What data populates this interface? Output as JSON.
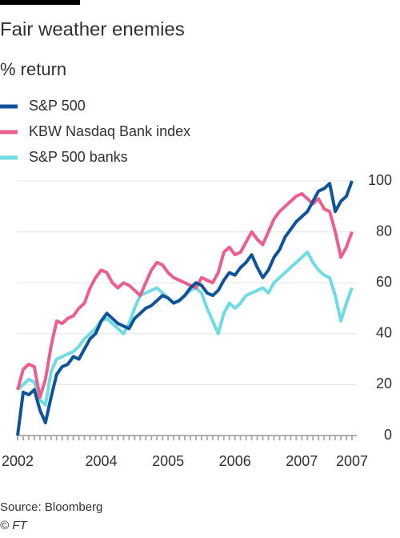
{
  "chart_data": {
    "type": "line",
    "title": "Fair weather enemies",
    "subtitle": "% return",
    "source": "Source: Bloomberg",
    "credit": "© FT",
    "categories": [
      "2002",
      null,
      null,
      null,
      null,
      null,
      null,
      null,
      null,
      null,
      null,
      null,
      null,
      null,
      null,
      "2004",
      null,
      null,
      null,
      null,
      null,
      null,
      null,
      null,
      null,
      null,
      null,
      "2005",
      null,
      null,
      null,
      null,
      null,
      null,
      null,
      null,
      null,
      null,
      null,
      "2006",
      null,
      null,
      null,
      null,
      null,
      null,
      null,
      null,
      null,
      null,
      null,
      "2007",
      null,
      null,
      null,
      null,
      null,
      null,
      null,
      null,
      "2007"
    ],
    "series": [
      {
        "name": "S&P 500",
        "color": "#0f5499",
        "values": [
          0,
          17,
          16,
          18,
          10,
          5,
          15,
          24,
          27,
          28,
          31,
          30,
          34,
          38,
          40,
          45,
          48,
          46,
          44,
          43,
          42,
          46,
          48,
          50,
          51,
          53,
          55,
          54,
          52,
          53,
          55,
          58,
          60,
          59,
          56,
          55,
          57,
          61,
          64,
          63,
          66,
          68,
          71,
          66,
          62,
          65,
          70,
          73,
          78,
          81,
          84,
          86,
          88,
          92,
          96,
          97,
          99,
          88,
          92,
          94,
          100
        ]
      },
      {
        "name": "KBW Nasdaq Bank index",
        "color": "#eb5e8d",
        "values": [
          18,
          26,
          28,
          27,
          15,
          22,
          35,
          45,
          44,
          46,
          47,
          50,
          52,
          58,
          62,
          65,
          64,
          60,
          58,
          60,
          59,
          57,
          55,
          60,
          65,
          68,
          67,
          64,
          62,
          61,
          60,
          59,
          58,
          62,
          61,
          60,
          64,
          72,
          74,
          71,
          72,
          76,
          80,
          77,
          75,
          80,
          85,
          88,
          90,
          92,
          94,
          95,
          93,
          91,
          93,
          89,
          88,
          80,
          70,
          74,
          80
        ]
      },
      {
        "name": "S&P 500 banks",
        "color": "#6fdbe4",
        "values": [
          18,
          20,
          22,
          21,
          14,
          12,
          25,
          30,
          31,
          32,
          33,
          35,
          38,
          40,
          42,
          45,
          46,
          44,
          42,
          40,
          44,
          50,
          55,
          56,
          57,
          58,
          56,
          54,
          52,
          53,
          55,
          57,
          58,
          56,
          50,
          45,
          40,
          48,
          52,
          50,
          52,
          55,
          56,
          57,
          58,
          56,
          60,
          62,
          64,
          66,
          68,
          70,
          72,
          68,
          65,
          63,
          62,
          55,
          45,
          52,
          58
        ]
      }
    ],
    "ylim": [
      0,
      100
    ],
    "yticks": [
      0,
      20,
      40,
      60,
      80,
      100
    ],
    "grid": true
  }
}
